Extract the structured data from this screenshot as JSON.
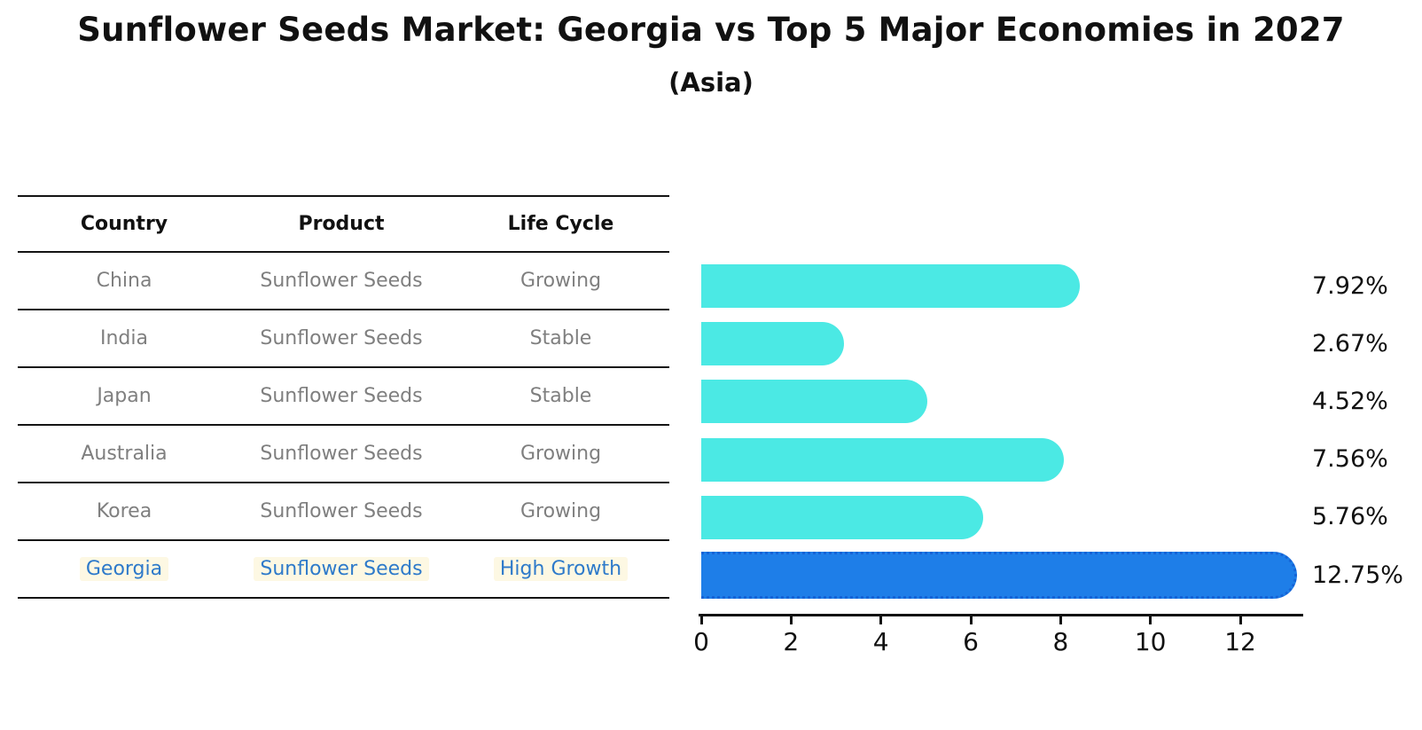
{
  "title": "Sunflower Seeds Market: Georgia vs Top 5 Major Economies in 2027",
  "subtitle": "(Asia)",
  "table": {
    "headers": [
      "Country",
      "Product",
      "Life Cycle"
    ],
    "rows": [
      {
        "country": "China",
        "product": "Sunflower Seeds",
        "life_cycle": "Growing",
        "highlighted": false
      },
      {
        "country": "India",
        "product": "Sunflower Seeds",
        "life_cycle": "Stable",
        "highlighted": false
      },
      {
        "country": "Japan",
        "product": "Sunflower Seeds",
        "life_cycle": "Stable",
        "highlighted": false
      },
      {
        "country": "Australia",
        "product": "Sunflower Seeds",
        "life_cycle": "Growing",
        "highlighted": false
      },
      {
        "country": "Korea",
        "product": "Sunflower Seeds",
        "life_cycle": "Growing",
        "highlighted": false
      },
      {
        "country": "Georgia",
        "product": "Sunflower Seeds",
        "life_cycle": "High Growth",
        "highlighted": true
      }
    ]
  },
  "chart_data": {
    "type": "bar",
    "orientation": "horizontal",
    "title": "Sunflower Seeds Market: Georgia vs Top 5 Major Economies in 2027",
    "subtitle": "(Asia)",
    "categories": [
      "China",
      "India",
      "Japan",
      "Australia",
      "Korea",
      "Georgia"
    ],
    "values": [
      7.92,
      2.67,
      4.52,
      7.56,
      5.76,
      12.75
    ],
    "value_labels": [
      "7.92%",
      "2.67%",
      "4.52%",
      "7.56%",
      "5.76%",
      "12.75%"
    ],
    "x_ticks": [
      0,
      2,
      4,
      6,
      8,
      10,
      12
    ],
    "xlim": [
      0,
      13.4
    ],
    "grid": false,
    "legend": "none",
    "highlight_index": 5,
    "xlabel": "",
    "ylabel": ""
  },
  "colors": {
    "bar_default": "#4BE9E4",
    "bar_highlight": "#1E7EE8",
    "bar_highlight_border": "#1563D6",
    "highlight_text": "#2E7ACA",
    "highlight_text_bg": "#FDF8E3",
    "table_text": "#7F7F7F",
    "heading_text": "#111111",
    "axis": "#111111"
  }
}
